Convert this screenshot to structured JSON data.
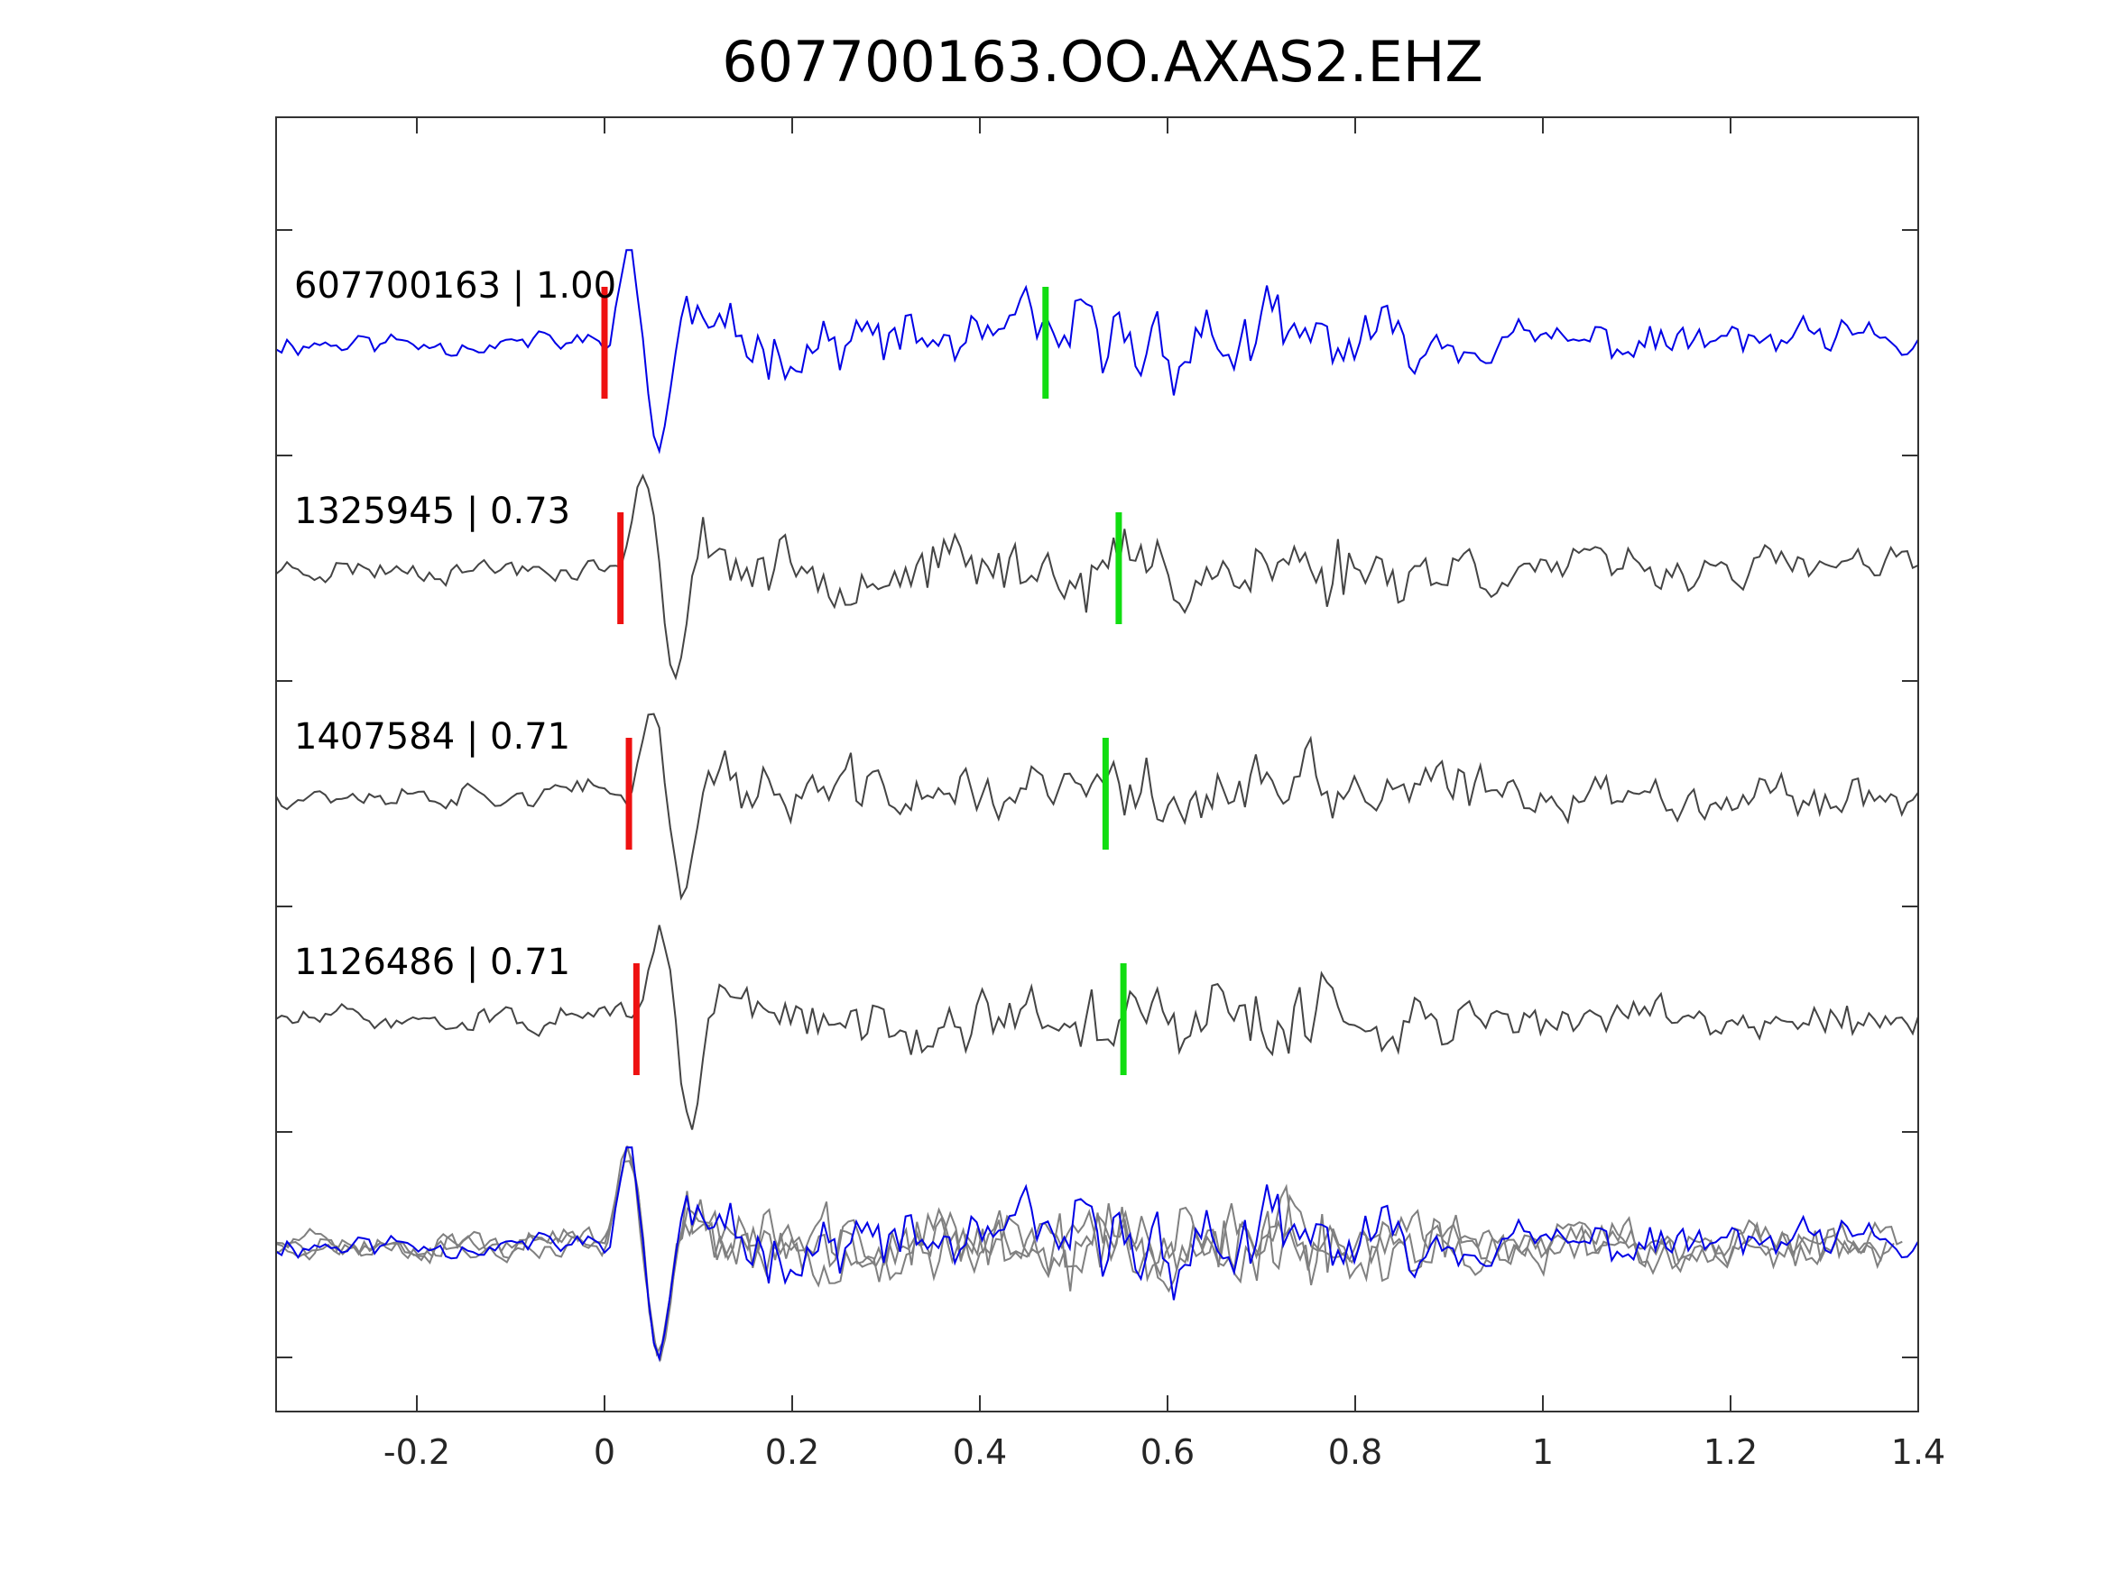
{
  "chart_data": {
    "type": "line",
    "title": "607700163.OO.AXAS2.EHZ",
    "xlabel": "",
    "ylabel": "",
    "xlim": [
      -0.35,
      1.4
    ],
    "x_ticks": [
      -0.2,
      0,
      0.2,
      0.4,
      0.6,
      0.8,
      1,
      1.2,
      1.4
    ],
    "x_tick_labels": [
      "-0.2",
      "0",
      "0.2",
      "0.4",
      "0.6",
      "0.8",
      "1",
      "1.2",
      "1.4"
    ],
    "y_ticks_visible_labels": false,
    "grid": false,
    "colors": {
      "reference": "#0000e6",
      "neighbor": "#444444",
      "overlay_neighbor": "#808080",
      "p_pick": "#ee1111",
      "s_pick": "#11dd11",
      "axis": "#333333"
    },
    "series": [
      {
        "label": "607700163 | 1.00",
        "role": "reference",
        "p_pick": 0.0,
        "s_pick": 0.47,
        "seed": 11
      },
      {
        "label": "1325945 | 0.73",
        "role": "neighbor",
        "p_pick": 0.017,
        "s_pick": 0.548,
        "seed": 23
      },
      {
        "label": "1407584 | 0.71",
        "role": "neighbor",
        "p_pick": 0.026,
        "s_pick": 0.534,
        "seed": 37
      },
      {
        "label": "1126486 | 0.71",
        "role": "neighbor",
        "p_pick": 0.034,
        "s_pick": 0.553,
        "seed": 51
      }
    ],
    "overlay": {
      "description_visible": false,
      "contains": [
        "reference",
        "neighbor",
        "neighbor",
        "neighbor"
      ]
    }
  }
}
